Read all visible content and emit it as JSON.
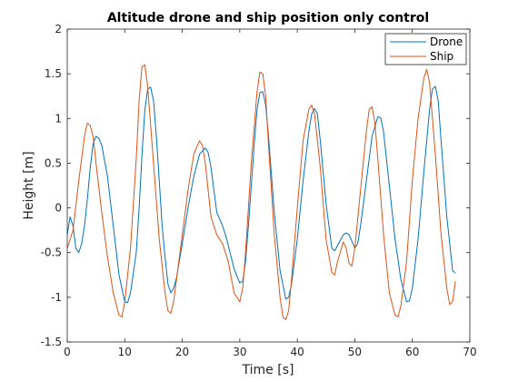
{
  "chart_data": {
    "type": "line",
    "title": "Altitude drone and ship position only control",
    "xlabel": "Time [s]",
    "ylabel": "Height [m]",
    "xlim": [
      0,
      70
    ],
    "ylim": [
      -1.5,
      2
    ],
    "xticks": [
      0,
      10,
      20,
      30,
      40,
      50,
      60,
      70
    ],
    "yticks": [
      -1.5,
      -1,
      -0.5,
      0,
      0.5,
      1,
      1.5,
      2
    ],
    "xtick_labels": [
      "0",
      "10",
      "20",
      "30",
      "40",
      "50",
      "60",
      "70"
    ],
    "ytick_labels": [
      "-1.5",
      "-1",
      "-0.5",
      "0",
      "0.5",
      "1",
      "1.5",
      "2"
    ],
    "grid": false,
    "legend_position": "top-right",
    "series": [
      {
        "name": "Drone",
        "color": "#0072bd",
        "points": [
          [
            0,
            -0.3
          ],
          [
            0.5,
            -0.1
          ],
          [
            1,
            -0.2
          ],
          [
            1.5,
            -0.45
          ],
          [
            2,
            -0.5
          ],
          [
            2.5,
            -0.4
          ],
          [
            3,
            -0.2
          ],
          [
            3.5,
            0.1
          ],
          [
            4,
            0.45
          ],
          [
            4.5,
            0.72
          ],
          [
            5,
            0.8
          ],
          [
            5.5,
            0.78
          ],
          [
            6,
            0.7
          ],
          [
            7,
            0.35
          ],
          [
            8,
            -0.2
          ],
          [
            9,
            -0.75
          ],
          [
            10,
            -1.05
          ],
          [
            10.5,
            -1.06
          ],
          [
            11,
            -0.95
          ],
          [
            12,
            -0.5
          ],
          [
            12.5,
            0.0
          ],
          [
            13,
            0.6
          ],
          [
            13.5,
            1.1
          ],
          [
            14,
            1.33
          ],
          [
            14.5,
            1.35
          ],
          [
            15,
            1.2
          ],
          [
            15.5,
            0.8
          ],
          [
            16,
            0.3
          ],
          [
            16.5,
            -0.2
          ],
          [
            17,
            -0.55
          ],
          [
            17.5,
            -0.85
          ],
          [
            18,
            -0.95
          ],
          [
            18.5,
            -0.9
          ],
          [
            19,
            -0.78
          ],
          [
            20,
            -0.4
          ],
          [
            21,
            0.0
          ],
          [
            22,
            0.35
          ],
          [
            23,
            0.6
          ],
          [
            24,
            0.67
          ],
          [
            24.5,
            0.62
          ],
          [
            25,
            0.45
          ],
          [
            25.5,
            0.2
          ],
          [
            26,
            -0.05
          ],
          [
            27,
            -0.2
          ],
          [
            27.5,
            -0.3
          ],
          [
            28,
            -0.42
          ],
          [
            28.5,
            -0.55
          ],
          [
            29,
            -0.68
          ],
          [
            30,
            -0.84
          ],
          [
            30.5,
            -0.82
          ],
          [
            31,
            -0.6
          ],
          [
            31.5,
            -0.2
          ],
          [
            32,
            0.25
          ],
          [
            32.5,
            0.7
          ],
          [
            33,
            1.1
          ],
          [
            33.5,
            1.29
          ],
          [
            34,
            1.3
          ],
          [
            34.5,
            1.15
          ],
          [
            35,
            0.8
          ],
          [
            36,
            -0.05
          ],
          [
            37,
            -0.7
          ],
          [
            38,
            -1.02
          ],
          [
            38.5,
            -1.0
          ],
          [
            39,
            -0.85
          ],
          [
            40,
            -0.35
          ],
          [
            41,
            0.3
          ],
          [
            42,
            0.85
          ],
          [
            42.5,
            1.05
          ],
          [
            43,
            1.11
          ],
          [
            43.5,
            1.05
          ],
          [
            44,
            0.75
          ],
          [
            45,
            0.05
          ],
          [
            46,
            -0.45
          ],
          [
            46.5,
            -0.48
          ],
          [
            47,
            -0.42
          ],
          [
            48,
            -0.3
          ],
          [
            48.5,
            -0.28
          ],
          [
            49,
            -0.3
          ],
          [
            50,
            -0.45
          ],
          [
            50.5,
            -0.4
          ],
          [
            51,
            -0.2
          ],
          [
            52,
            0.3
          ],
          [
            53,
            0.8
          ],
          [
            54,
            1.02
          ],
          [
            54.5,
            1.01
          ],
          [
            55,
            0.85
          ],
          [
            56,
            0.25
          ],
          [
            57,
            -0.35
          ],
          [
            58,
            -0.8
          ],
          [
            59,
            -1.05
          ],
          [
            59.5,
            -1.04
          ],
          [
            60,
            -0.9
          ],
          [
            61,
            -0.35
          ],
          [
            62,
            0.4
          ],
          [
            63,
            1.1
          ],
          [
            63.5,
            1.33
          ],
          [
            64,
            1.36
          ],
          [
            64.5,
            1.2
          ],
          [
            65,
            0.75
          ],
          [
            66,
            -0.1
          ],
          [
            67,
            -0.7
          ],
          [
            67.5,
            -0.73
          ]
        ]
      },
      {
        "name": "Ship",
        "color": "#d95319",
        "points": [
          [
            0,
            -0.45
          ],
          [
            1,
            -0.25
          ],
          [
            2,
            0.3
          ],
          [
            3,
            0.8
          ],
          [
            3.5,
            0.95
          ],
          [
            4,
            0.92
          ],
          [
            4.5,
            0.8
          ],
          [
            5,
            0.5
          ],
          [
            6,
            -0.05
          ],
          [
            7,
            -0.55
          ],
          [
            8,
            -0.95
          ],
          [
            9,
            -1.2
          ],
          [
            9.5,
            -1.22
          ],
          [
            10,
            -1.05
          ],
          [
            11,
            -0.45
          ],
          [
            12,
            0.55
          ],
          [
            12.5,
            1.2
          ],
          [
            13,
            1.58
          ],
          [
            13.5,
            1.6
          ],
          [
            14,
            1.35
          ],
          [
            15,
            0.5
          ],
          [
            16,
            -0.35
          ],
          [
            17,
            -0.95
          ],
          [
            17.5,
            -1.15
          ],
          [
            18,
            -1.18
          ],
          [
            18.5,
            -1.05
          ],
          [
            19,
            -0.8
          ],
          [
            20,
            -0.3
          ],
          [
            21,
            0.2
          ],
          [
            22,
            0.6
          ],
          [
            23,
            0.75
          ],
          [
            23.5,
            0.7
          ],
          [
            24,
            0.5
          ],
          [
            25,
            -0.1
          ],
          [
            26,
            -0.3
          ],
          [
            27,
            -0.4
          ],
          [
            28,
            -0.6
          ],
          [
            29,
            -0.95
          ],
          [
            30,
            -1.05
          ],
          [
            30.5,
            -0.9
          ],
          [
            31,
            -0.5
          ],
          [
            32,
            0.5
          ],
          [
            33,
            1.3
          ],
          [
            33.5,
            1.52
          ],
          [
            34,
            1.5
          ],
          [
            34.5,
            1.25
          ],
          [
            35,
            0.7
          ],
          [
            36,
            -0.3
          ],
          [
            37,
            -1.0
          ],
          [
            37.5,
            -1.22
          ],
          [
            38,
            -1.25
          ],
          [
            38.5,
            -1.15
          ],
          [
            39,
            -0.8
          ],
          [
            40,
            0.0
          ],
          [
            41,
            0.75
          ],
          [
            42,
            1.1
          ],
          [
            42.5,
            1.15
          ],
          [
            43,
            1.05
          ],
          [
            44,
            0.45
          ],
          [
            45,
            -0.35
          ],
          [
            46,
            -0.72
          ],
          [
            46.5,
            -0.75
          ],
          [
            47,
            -0.6
          ],
          [
            48,
            -0.38
          ],
          [
            48.5,
            -0.45
          ],
          [
            49,
            -0.62
          ],
          [
            49.5,
            -0.65
          ],
          [
            50,
            -0.45
          ],
          [
            51,
            0.2
          ],
          [
            52,
            0.85
          ],
          [
            52.5,
            1.1
          ],
          [
            53,
            1.13
          ],
          [
            53.5,
            0.95
          ],
          [
            54,
            0.55
          ],
          [
            55,
            -0.3
          ],
          [
            56,
            -0.95
          ],
          [
            57,
            -1.2
          ],
          [
            57.5,
            -1.22
          ],
          [
            58,
            -1.1
          ],
          [
            59,
            -0.6
          ],
          [
            60,
            0.3
          ],
          [
            61,
            1.0
          ],
          [
            62,
            1.45
          ],
          [
            62.5,
            1.55
          ],
          [
            63,
            1.4
          ],
          [
            64,
            0.6
          ],
          [
            65,
            -0.3
          ],
          [
            66,
            -0.9
          ],
          [
            66.5,
            -1.08
          ],
          [
            67,
            -1.05
          ],
          [
            67.5,
            -0.82
          ]
        ]
      }
    ]
  }
}
